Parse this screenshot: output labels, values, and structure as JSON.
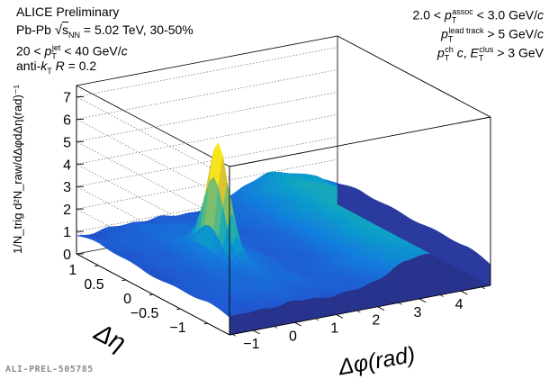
{
  "header_left": {
    "line1": "ALICE Preliminary",
    "line2": "Pb-Pb √s_NN = 5.02 TeV, 30-50%",
    "line3": "20 < p_T^jet < 40 GeV/c",
    "line4": "anti-k_T R = 0.2"
  },
  "header_right": {
    "line1": "2.0 < p_T^assoc < 3.0 GeV/c",
    "line2": "p_T^lead track > 5 GeV/c",
    "line3": "p_T^ch c, E_T^clus > 3 GeV"
  },
  "watermark": "ALI-PREL-505785",
  "chart_data": {
    "type": "surface",
    "xlabel": "Δφ(rad)",
    "ylabel": "Δη",
    "zlabel": "1/N_trig d²N_raw/dΔφdΔη(rad)⁻¹",
    "xlim": [
      -1.5708,
      4.7124
    ],
    "ylim": [
      -1.4,
      1.4
    ],
    "zlim": [
      0,
      7.5
    ],
    "x_ticks": [
      "−1",
      "0",
      "1",
      "2",
      "3",
      "4"
    ],
    "x_tick_values": [
      -1,
      0,
      1,
      2,
      3,
      4
    ],
    "y_ticks": [
      "1",
      "0.5",
      "0",
      "−0.5",
      "−1"
    ],
    "y_tick_values": [
      1,
      0.5,
      0,
      -0.5,
      -1
    ],
    "z_ticks": [
      "0",
      "1",
      "2",
      "3",
      "4",
      "5",
      "6",
      "7"
    ],
    "z_tick_values": [
      0,
      1,
      2,
      3,
      4,
      5,
      6,
      7
    ],
    "grid": true,
    "features": {
      "baseline": 1.1,
      "near_side_peak": {
        "dphi": 0,
        "deta": 0,
        "height": 5.5
      },
      "away_side_ridge": {
        "dphi": 3.14,
        "height": 2.4
      }
    }
  }
}
